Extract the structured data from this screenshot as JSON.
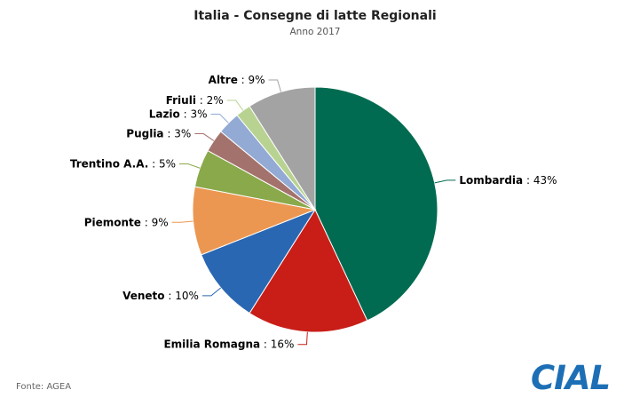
{
  "chart_data": {
    "type": "pie",
    "title": "Italia - Consegne di latte Regionali",
    "subtitle": "Anno 2017",
    "unit": "%",
    "slices": [
      {
        "name": "Lombardia",
        "value": 43,
        "color": "#006b50"
      },
      {
        "name": "Emilia Romagna",
        "value": 16,
        "color": "#c81e17"
      },
      {
        "name": "Veneto",
        "value": 10,
        "color": "#2a67b3"
      },
      {
        "name": "Piemonte",
        "value": 9,
        "color": "#ec9751"
      },
      {
        "name": "Trentino A.A.",
        "value": 5,
        "color": "#8aa94b"
      },
      {
        "name": "Puglia",
        "value": 3,
        "color": "#a4726c"
      },
      {
        "name": "Lazio",
        "value": 3,
        "color": "#92aad4"
      },
      {
        "name": "Friuli",
        "value": 2,
        "color": "#b8d391"
      },
      {
        "name": "Altre",
        "value": 9,
        "color": "#a3a3a3"
      }
    ]
  },
  "source": "Fonte: AGEA",
  "logo": {
    "text": "CIAL",
    "color": "#1d6fb5"
  }
}
